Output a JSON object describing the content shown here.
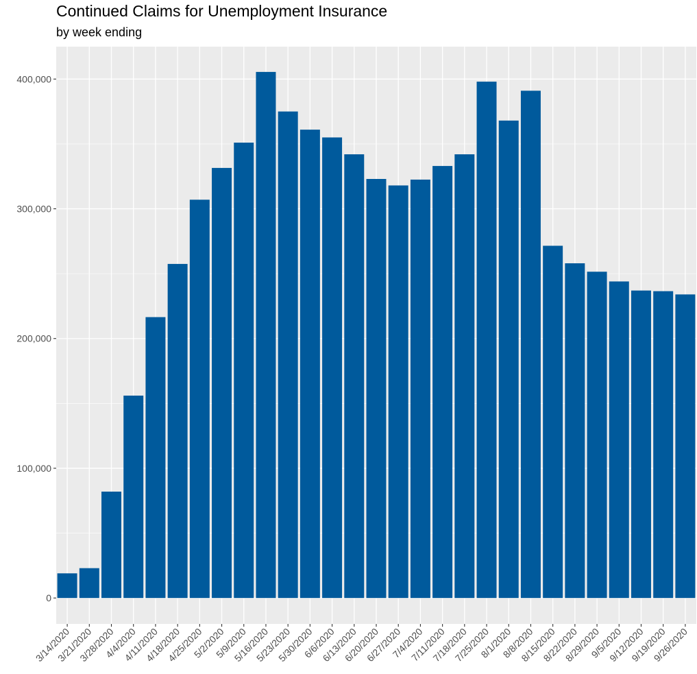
{
  "chart_data": {
    "type": "bar",
    "title": "Continued Claims for Unemployment Insurance",
    "subtitle": "by week ending",
    "xlabel": "",
    "ylabel": "",
    "ylim": [
      -20000,
      425000
    ],
    "yticks": [
      0,
      100000,
      200000,
      300000,
      400000
    ],
    "ytick_labels": [
      "0",
      "100,000",
      "200,000",
      "300,000",
      "400,000"
    ],
    "grid": true,
    "panel_background": "#ebebeb",
    "bar_color": "#005a9c",
    "categories": [
      "3/14/2020",
      "3/21/2020",
      "3/28/2020",
      "4/4/2020",
      "4/11/2020",
      "4/18/2020",
      "4/25/2020",
      "5/2/2020",
      "5/9/2020",
      "5/16/2020",
      "5/23/2020",
      "5/30/2020",
      "6/6/2020",
      "6/13/2020",
      "6/20/2020",
      "6/27/2020",
      "7/4/2020",
      "7/11/2020",
      "7/18/2020",
      "7/25/2020",
      "8/1/2020",
      "8/8/2020",
      "8/15/2020",
      "8/22/2020",
      "8/29/2020",
      "9/5/2020",
      "9/12/2020",
      "9/19/2020",
      "9/26/2020"
    ],
    "values": [
      19000,
      23000,
      82000,
      156000,
      216500,
      257500,
      307000,
      331500,
      351000,
      405500,
      375000,
      361000,
      355000,
      342000,
      323000,
      318000,
      322500,
      333000,
      342000,
      398000,
      368000,
      391000,
      271500,
      258000,
      251500,
      244000,
      237000,
      236500,
      234000
    ]
  }
}
